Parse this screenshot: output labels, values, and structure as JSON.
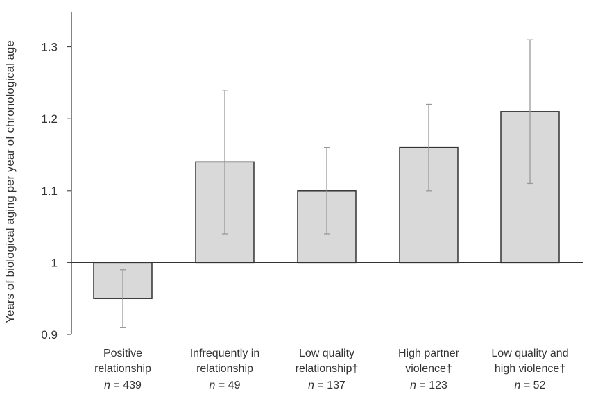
{
  "chart_data": {
    "type": "bar",
    "ylabel": "Years of biological aging per year of chronological age",
    "ylim": [
      0.9,
      1.35
    ],
    "baseline": 1.0,
    "yticks": [
      {
        "value": 0.9,
        "label": "0.9"
      },
      {
        "value": 1.0,
        "label": "1"
      },
      {
        "value": 1.1,
        "label": "1.1"
      },
      {
        "value": 1.2,
        "label": "1.2"
      },
      {
        "value": 1.3,
        "label": "1.3"
      }
    ],
    "categories": [
      {
        "label_lines": [
          "Positive",
          "relationship"
        ],
        "n_label": "n = 439",
        "value": 0.95,
        "err_low": 0.91,
        "err_high": 0.99
      },
      {
        "label_lines": [
          "Infrequently in",
          "relationship"
        ],
        "n_label": "n = 49",
        "value": 1.14,
        "err_low": 1.04,
        "err_high": 1.24
      },
      {
        "label_lines": [
          "Low quality",
          "relationship†"
        ],
        "n_label": "n = 137",
        "value": 1.1,
        "err_low": 1.04,
        "err_high": 1.16
      },
      {
        "label_lines": [
          "High partner",
          "violence†"
        ],
        "n_label": "n = 123",
        "value": 1.16,
        "err_low": 1.1,
        "err_high": 1.22
      },
      {
        "label_lines": [
          "Low quality and",
          "high violence†"
        ],
        "n_label": "n = 52",
        "value": 1.21,
        "err_low": 1.11,
        "err_high": 1.31
      }
    ],
    "bar_color": "#d9d9d9",
    "bar_stroke": "#333333",
    "error_color": "#999999",
    "grid": false
  }
}
